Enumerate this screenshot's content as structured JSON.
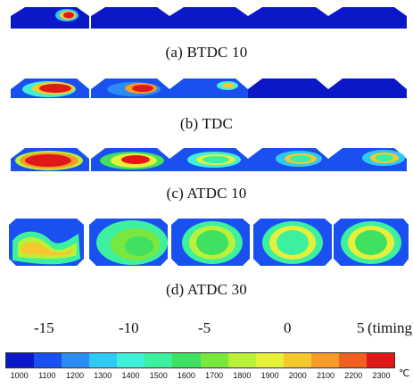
{
  "rows": [
    {
      "caption": "(a)  BTDC  10"
    },
    {
      "caption": "(b)  TDC"
    },
    {
      "caption": "(c)  ATDC  10"
    },
    {
      "caption": "(d)  ATDC  30"
    }
  ],
  "timing": {
    "labels": [
      "-15",
      "-10",
      "-5",
      "0",
      "5"
    ],
    "suffix": "(timing)"
  },
  "colorbar": {
    "ticks": [
      "1000",
      "1100",
      "1200",
      "1300",
      "1400",
      "1500",
      "1600",
      "1700",
      "1800",
      "1900",
      "2000",
      "2100",
      "2200",
      "2300"
    ],
    "unit": "℃",
    "colors": [
      "#0a18c8",
      "#1a50f0",
      "#2c8cf5",
      "#30c8f5",
      "#3ef0d8",
      "#3cf0a0",
      "#40e060",
      "#78e840",
      "#b8f03a",
      "#e6f03a",
      "#f6c830",
      "#f69a28",
      "#f06020",
      "#e01818"
    ]
  }
}
